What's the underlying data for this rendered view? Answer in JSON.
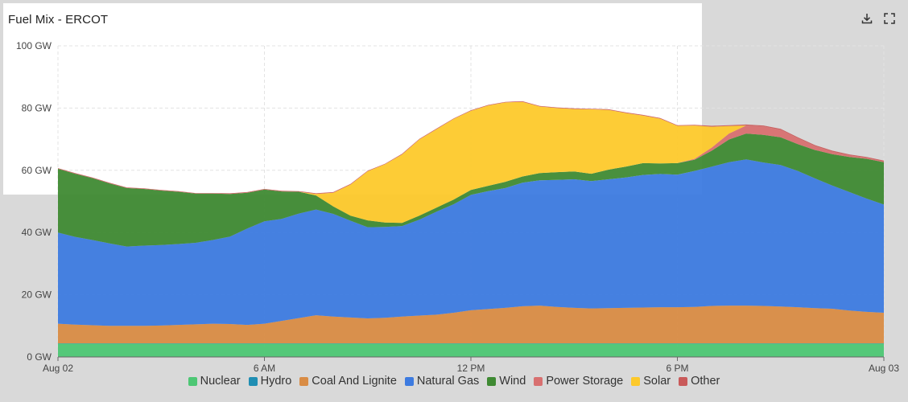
{
  "title": "Fuel Mix - ERCOT",
  "toolbar": {
    "download_icon": "download-icon",
    "fullscreen_icon": "fullscreen-icon"
  },
  "chart_data": {
    "type": "area",
    "stacked": true,
    "title": "Fuel Mix - ERCOT",
    "xlabel": "",
    "ylabel": "",
    "x": [
      0,
      0.5,
      1,
      1.5,
      2,
      2.5,
      3,
      3.5,
      4,
      4.5,
      5,
      5.5,
      6,
      6.5,
      7,
      7.5,
      8,
      8.5,
      9,
      9.5,
      10,
      10.5,
      11,
      11.5,
      12,
      12.5,
      13,
      13.5,
      14,
      14.5,
      15,
      15.5,
      16,
      16.5,
      17,
      17.5,
      18,
      18.5,
      19,
      19.5,
      20,
      20.5,
      21,
      21.5,
      22,
      22.5,
      23,
      23.5,
      24
    ],
    "x_tick_positions": [
      0,
      6,
      12,
      18,
      24
    ],
    "x_tick_labels": [
      "Aug 02",
      "6 AM",
      "12 PM",
      "6 PM",
      "Aug 03"
    ],
    "y_ticks": [
      0,
      20,
      40,
      60,
      80,
      100
    ],
    "y_tick_labels": [
      "0 GW",
      "20 GW",
      "40 GW",
      "60 GW",
      "80 GW",
      "100 GW"
    ],
    "ylim": [
      0,
      100
    ],
    "grid": true,
    "legend_position": "bottom",
    "series": [
      {
        "name": "Nuclear",
        "color": "#4dc774",
        "values": [
          4.3,
          4.3,
          4.3,
          4.3,
          4.3,
          4.3,
          4.3,
          4.3,
          4.3,
          4.3,
          4.3,
          4.3,
          4.3,
          4.3,
          4.3,
          4.3,
          4.3,
          4.3,
          4.3,
          4.3,
          4.3,
          4.3,
          4.3,
          4.3,
          4.3,
          4.3,
          4.3,
          4.3,
          4.3,
          4.3,
          4.3,
          4.3,
          4.3,
          4.3,
          4.3,
          4.3,
          4.3,
          4.3,
          4.3,
          4.3,
          4.3,
          4.3,
          4.3,
          4.3,
          4.3,
          4.3,
          4.3,
          4.3,
          4.3
        ]
      },
      {
        "name": "Hydro",
        "color": "#1f8eb3",
        "values": [
          0.1,
          0.1,
          0.1,
          0.1,
          0.1,
          0.1,
          0.1,
          0.1,
          0.1,
          0.1,
          0.1,
          0.1,
          0.1,
          0.1,
          0.1,
          0.1,
          0.1,
          0.1,
          0.1,
          0.1,
          0.1,
          0.1,
          0.1,
          0.1,
          0.1,
          0.1,
          0.1,
          0.1,
          0.1,
          0.1,
          0.1,
          0.1,
          0.1,
          0.1,
          0.1,
          0.1,
          0.1,
          0.1,
          0.1,
          0.1,
          0.1,
          0.1,
          0.1,
          0.1,
          0.1,
          0.1,
          0.1,
          0.1,
          0.1
        ]
      },
      {
        "name": "Coal And Lignite",
        "color": "#d98c45",
        "values": [
          6.3,
          6.0,
          5.8,
          5.6,
          5.6,
          5.6,
          5.7,
          5.9,
          6.1,
          6.3,
          6.2,
          5.9,
          6.3,
          7.2,
          8.1,
          9.0,
          8.6,
          8.3,
          8.0,
          8.2,
          8.6,
          8.9,
          9.2,
          9.8,
          10.6,
          11.0,
          11.4,
          11.9,
          12.1,
          11.7,
          11.4,
          11.2,
          11.3,
          11.4,
          11.5,
          11.6,
          11.6,
          11.7,
          12.0,
          12.1,
          12.1,
          12.0,
          11.8,
          11.6,
          11.3,
          11.1,
          10.5,
          10.1,
          9.8
        ]
      },
      {
        "name": "Natural Gas",
        "color": "#3d7be0",
        "values": [
          29.3,
          28.2,
          27.4,
          26.5,
          25.5,
          25.8,
          25.9,
          26.0,
          26.2,
          26.9,
          28.1,
          31.0,
          32.9,
          32.8,
          33.6,
          34.0,
          33.0,
          31.1,
          29.3,
          29.2,
          29.1,
          30.8,
          33.1,
          34.9,
          37.1,
          37.9,
          38.5,
          39.7,
          40.3,
          40.8,
          41.3,
          40.9,
          41.4,
          41.9,
          42.6,
          42.8,
          42.6,
          43.7,
          44.8,
          46.1,
          47.0,
          46.1,
          45.5,
          43.8,
          41.7,
          39.6,
          38.1,
          36.4,
          34.8
        ]
      },
      {
        "name": "Wind",
        "color": "#3f8a33",
        "values": [
          20.5,
          20.3,
          19.9,
          19.3,
          18.8,
          18.2,
          17.5,
          16.8,
          15.8,
          14.9,
          13.7,
          11.5,
          10.2,
          8.8,
          7.0,
          4.5,
          2.4,
          1.6,
          2.2,
          1.4,
          1.0,
          1.3,
          1.3,
          1.5,
          1.6,
          1.7,
          2.0,
          2.0,
          2.3,
          2.5,
          2.5,
          2.4,
          3.1,
          3.5,
          3.8,
          3.4,
          3.7,
          3.6,
          5.1,
          7.3,
          8.3,
          8.9,
          8.9,
          8.6,
          9.1,
          10.1,
          11.3,
          12.8,
          13.6
        ]
      },
      {
        "name": "Power Storage",
        "color": "#d87070",
        "values": [
          0,
          0,
          0,
          0,
          0,
          0,
          0,
          0,
          0,
          0,
          0,
          0,
          0,
          0,
          0,
          0,
          0,
          0,
          0,
          0,
          0,
          0,
          0,
          0,
          0,
          0,
          0,
          0,
          0,
          0,
          0,
          0,
          0,
          0,
          0,
          0,
          0,
          0.3,
          1.0,
          1.9,
          2.6,
          2.7,
          2.4,
          1.9,
          1.3,
          0.8,
          0.5,
          0.3,
          0.2
        ]
      },
      {
        "name": "Solar",
        "color": "#fdc92b",
        "values": [
          0,
          0,
          0,
          0,
          0,
          0,
          0,
          0,
          0,
          0,
          0,
          0,
          0,
          0,
          0,
          0.5,
          4.4,
          10.0,
          15.8,
          18.7,
          22.0,
          24.5,
          25.2,
          25.9,
          25.4,
          25.8,
          25.5,
          24.0,
          21.4,
          20.6,
          20.1,
          20.7,
          19.2,
          17.2,
          15.3,
          14.4,
          12.0,
          10.7,
          6.7,
          2.4,
          0,
          0,
          0,
          0,
          0,
          0,
          0,
          0,
          0
        ]
      },
      {
        "name": "Other",
        "color": "#c95a5a",
        "values": [
          0.2,
          0.2,
          0.2,
          0.2,
          0.2,
          0.2,
          0.2,
          0.2,
          0.2,
          0.2,
          0.2,
          0.2,
          0.2,
          0.2,
          0.2,
          0.2,
          0.2,
          0.2,
          0.2,
          0.2,
          0.2,
          0.2,
          0.2,
          0.2,
          0.2,
          0.2,
          0.2,
          0.2,
          0.2,
          0.2,
          0.2,
          0.2,
          0.2,
          0.2,
          0.2,
          0.2,
          0.2,
          0.2,
          0.3,
          0.3,
          0.3,
          0.3,
          0.3,
          0.3,
          0.3,
          0.3,
          0.3,
          0.3,
          0.3
        ]
      }
    ]
  }
}
